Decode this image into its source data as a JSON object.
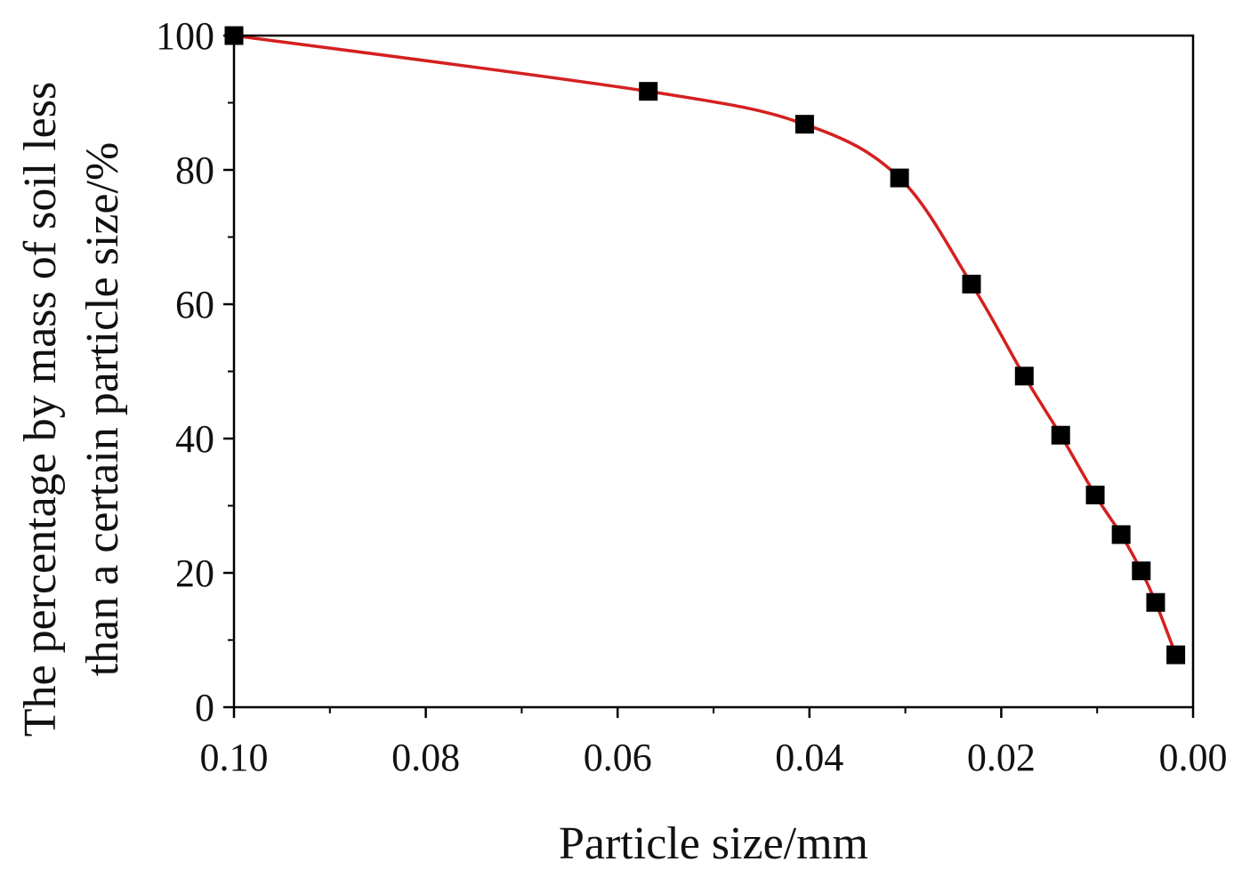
{
  "chart_data": {
    "type": "line",
    "title": "",
    "xlabel": "Particle size/mm",
    "ylabel_lines": [
      "The percentage by mass of soil less",
      "than a certain particle size/%"
    ],
    "xlim": [
      0.1,
      0.0
    ],
    "ylim": [
      0,
      100
    ],
    "x_reversed": true,
    "x_ticks": [
      "0.10",
      "0.08",
      "0.06",
      "0.04",
      "0.02",
      "0.00"
    ],
    "y_ticks": [
      "0",
      "20",
      "40",
      "60",
      "80",
      "100"
    ],
    "grid": false,
    "legend": "none",
    "series": [
      {
        "x": [
          0.1,
          0.0568,
          0.0405,
          0.0306,
          0.0231,
          0.0176,
          0.0138,
          0.0102,
          0.0075,
          0.0054,
          0.0039,
          0.0018
        ],
        "y": [
          100,
          91.7,
          86.8,
          78.8,
          63.0,
          49.3,
          40.5,
          31.6,
          25.7,
          20.3,
          15.6,
          7.8
        ],
        "marker": "square",
        "marker_color": "#000000",
        "line_color": "#d42020",
        "smooth": true
      }
    ]
  }
}
